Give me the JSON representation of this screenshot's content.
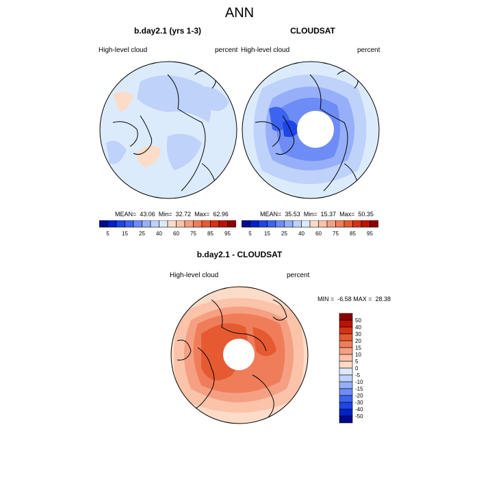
{
  "figure": {
    "title": "ANN"
  },
  "panels": {
    "model": {
      "title": "b.day2.1 (yrs 1-3)",
      "left_label": "High-level cloud",
      "right_label": "percent",
      "stats": "MEAN=  43.06  Min=  32.72  Max=  62.96"
    },
    "obs": {
      "title": "CLOUDSAT",
      "left_label": "High-level cloud",
      "right_label": "percent",
      "stats": "MEAN=  35.53  Min=  15.37  Max=  50.35"
    },
    "diff": {
      "title": "b.day2.1 - CLOUDSAT",
      "left_label": "High-level cloud",
      "right_label": "percent",
      "stats": "MIN =  -6.58 MAX =  28.38"
    }
  },
  "colorbars": {
    "top_labels": [
      "5",
      "15",
      "25",
      "40",
      "60",
      "75",
      "85",
      "95"
    ],
    "top_colors": [
      "#000a8c",
      "#0020c8",
      "#1e46e6",
      "#3c64f0",
      "#6e8cf5",
      "#96aff8",
      "#bed2fa",
      "#dcebfc",
      "#fcdcc8",
      "#fac3aa",
      "#f5a082",
      "#f07d5a",
      "#e65a32",
      "#d73214",
      "#b91400",
      "#8c0000"
    ],
    "diff_labels": [
      "50",
      "40",
      "30",
      "20",
      "15",
      "10",
      "5",
      "0",
      "-5",
      "-10",
      "-15",
      "-20",
      "-30",
      "-40",
      "-50"
    ],
    "diff_colors": [
      "#8c0000",
      "#b91400",
      "#d73214",
      "#e65a32",
      "#f07d5a",
      "#f5a082",
      "#fac3aa",
      "#fcdcc8",
      "#dcebfc",
      "#bed2fa",
      "#96aff8",
      "#6e8cf5",
      "#3c64f0",
      "#1e46e6",
      "#0020c8",
      "#000a8c"
    ]
  }
}
